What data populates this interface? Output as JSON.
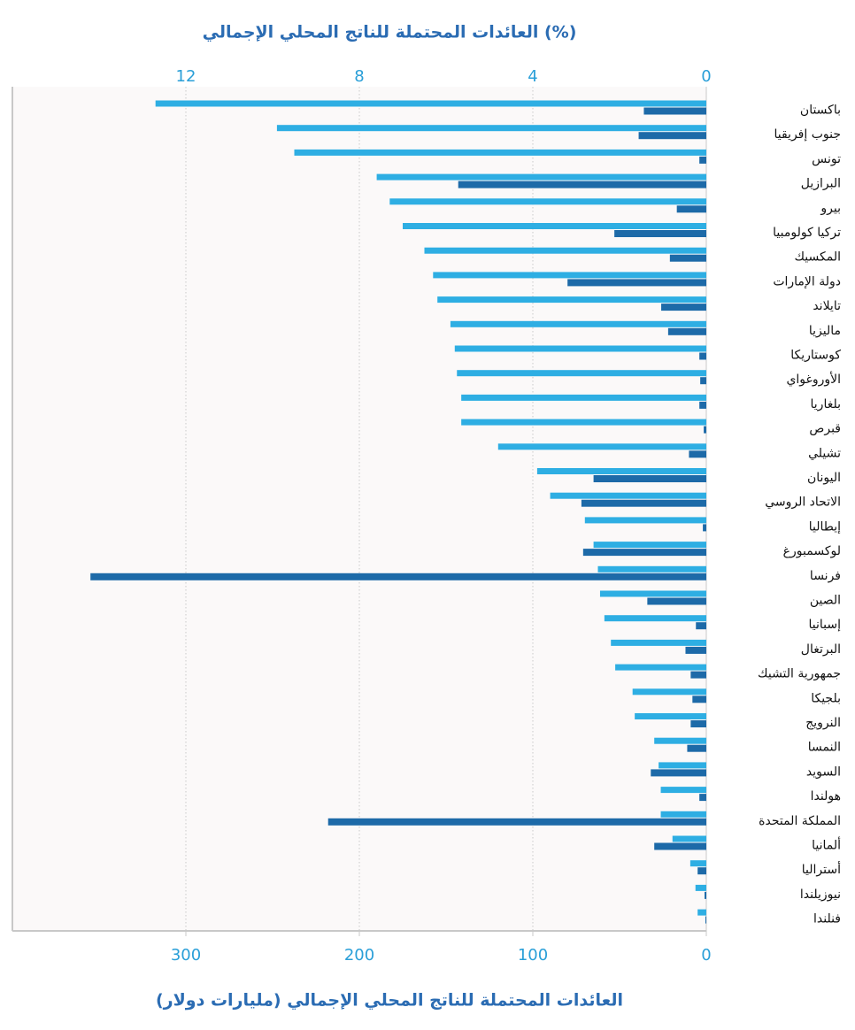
{
  "chart_data": {
    "type": "bar",
    "orientation": "horizontal",
    "x_reversed": true,
    "grid": true,
    "title": "العائدات المحتملة للناتج المحلي الإجمالي (%)",
    "xlabel": "العائدات المحتملة للناتج المحلي الإجمالي (مليارات دولار)",
    "categories": [
      "باكستان",
      "جنوب إفريقيا",
      "تونس",
      "البرازيل",
      "بيرو",
      "تركيا كولومبيا",
      "المكسيك",
      "دولة الإمارات",
      "تايلاند",
      "ماليزيا",
      "كوستاريكا",
      "الأوروغواي",
      "بلغاريا",
      "قبرص",
      "تشيلي",
      "اليونان",
      "الاتحاد الروسي",
      "إيطاليا",
      "لوكسمبورغ",
      "فرنسا",
      "الصين",
      "إسبانيا",
      "البرتغال",
      "جمهورية التشيك",
      "بلجيكا",
      "النرويج",
      "النمسا",
      "السويد",
      "هولندا",
      "المملكة المتحدة",
      "ألمانيا",
      "أستراليا",
      "نيوزيلندا",
      "فنلندا"
    ],
    "series": [
      {
        "color": "#2eaee3",
        "axis": "x2",
        "values": [
          12.7,
          9.9,
          9.5,
          7.6,
          7.3,
          7.0,
          6.5,
          6.3,
          6.2,
          5.9,
          5.8,
          5.75,
          5.65,
          5.65,
          4.8,
          3.9,
          3.6,
          2.8,
          2.6,
          2.5,
          2.45,
          2.35,
          2.2,
          2.1,
          1.7,
          1.65,
          1.2,
          1.1,
          1.05,
          1.05,
          0.78,
          0.37,
          0.25,
          0.2
        ]
      },
      {
        "color": "#1d6aa8",
        "axis": "x",
        "values": [
          36,
          39,
          4,
          143,
          17,
          53,
          21,
          80,
          26,
          22,
          4,
          3.5,
          4,
          1.5,
          10,
          65,
          72,
          2,
          71,
          355,
          34,
          6,
          12,
          9,
          8,
          9,
          11,
          32,
          4,
          218,
          30,
          5,
          1,
          0.5
        ]
      }
    ],
    "xlim": [
      0,
      400
    ],
    "xticks": [
      0,
      100,
      200,
      300
    ],
    "x2lim": [
      0,
      16
    ],
    "x2ticks": [
      0,
      4,
      8,
      12
    ]
  }
}
